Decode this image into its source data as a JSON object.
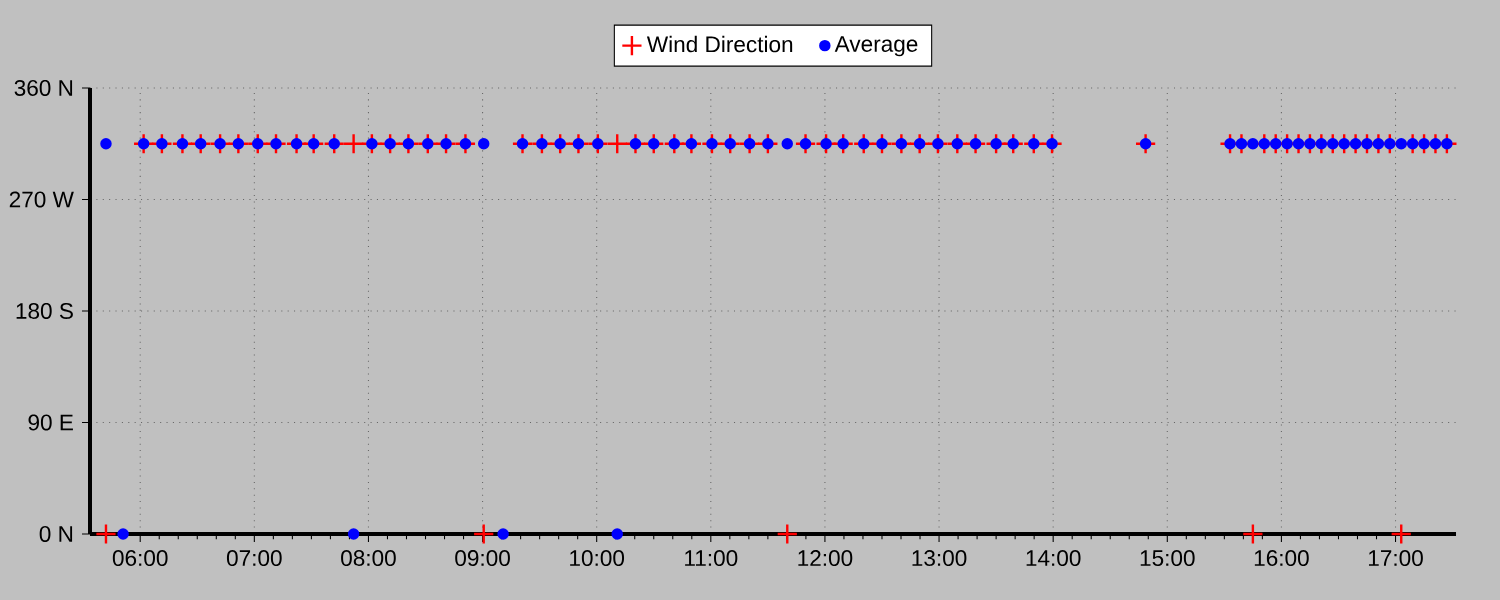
{
  "chart_data": {
    "type": "scatter",
    "xlim": [
      5.56,
      17.53
    ],
    "ylim": [
      0,
      360
    ],
    "xticks": [
      {
        "value": 6,
        "label": "06:00"
      },
      {
        "value": 7,
        "label": "07:00"
      },
      {
        "value": 8,
        "label": "08:00"
      },
      {
        "value": 9,
        "label": "09:00"
      },
      {
        "value": 10,
        "label": "10:00"
      },
      {
        "value": 11,
        "label": "11:00"
      },
      {
        "value": 12,
        "label": "12:00"
      },
      {
        "value": 13,
        "label": "13:00"
      },
      {
        "value": 14,
        "label": "14:00"
      },
      {
        "value": 15,
        "label": "15:00"
      },
      {
        "value": 16,
        "label": "16:00"
      },
      {
        "value": 17,
        "label": "17:00"
      }
    ],
    "yticks": [
      {
        "value": 0,
        "label": "0 N"
      },
      {
        "value": 90,
        "label": "90 E"
      },
      {
        "value": 180,
        "label": "180 S"
      },
      {
        "value": 270,
        "label": "270 W"
      },
      {
        "value": 360,
        "label": "360 N"
      }
    ],
    "grid": true,
    "legend": "top",
    "series": [
      {
        "name": "Wind Direction",
        "color": "#ff0000",
        "marker": "cross",
        "x": [
          5.7,
          6.03,
          6.19,
          6.37,
          6.53,
          6.7,
          6.86,
          7.03,
          7.19,
          7.37,
          7.52,
          7.7,
          7.87,
          8.03,
          8.19,
          8.35,
          8.52,
          8.68,
          8.85,
          9.01,
          9.35,
          9.52,
          9.68,
          9.84,
          10.01,
          10.18,
          10.34,
          10.5,
          10.68,
          10.83,
          11.01,
          11.17,
          11.34,
          11.5,
          11.67,
          11.83,
          12.01,
          12.16,
          12.34,
          12.5,
          12.67,
          12.83,
          12.99,
          13.16,
          13.32,
          13.5,
          13.65,
          13.83,
          13.99,
          14.81,
          15.55,
          15.65,
          15.75,
          15.85,
          15.95,
          16.05,
          16.15,
          16.25,
          16.35,
          16.45,
          16.55,
          16.65,
          16.75,
          16.85,
          16.95,
          17.05,
          17.15,
          17.25,
          17.35,
          17.45
        ],
        "values": [
          0,
          315,
          315,
          315,
          315,
          315,
          315,
          315,
          315,
          315,
          315,
          315,
          315,
          315,
          315,
          315,
          315,
          315,
          315,
          0,
          315,
          315,
          315,
          315,
          315,
          315,
          315,
          315,
          315,
          315,
          315,
          315,
          315,
          315,
          0,
          315,
          315,
          315,
          315,
          315,
          315,
          315,
          315,
          315,
          315,
          315,
          315,
          315,
          315,
          315,
          315,
          315,
          0,
          315,
          315,
          315,
          315,
          315,
          315,
          315,
          315,
          315,
          315,
          315,
          315,
          0,
          315,
          315,
          315,
          315
        ]
      },
      {
        "name": "Average",
        "color": "#0000ff",
        "marker": "circle",
        "x": [
          5.7,
          5.85,
          6.03,
          6.19,
          6.37,
          6.53,
          6.7,
          6.86,
          7.03,
          7.19,
          7.37,
          7.52,
          7.7,
          7.87,
          8.03,
          8.19,
          8.35,
          8.52,
          8.68,
          8.85,
          9.01,
          9.18,
          9.35,
          9.52,
          9.68,
          9.84,
          10.01,
          10.18,
          10.34,
          10.5,
          10.68,
          10.83,
          11.01,
          11.17,
          11.34,
          11.5,
          11.67,
          11.83,
          12.01,
          12.16,
          12.34,
          12.5,
          12.67,
          12.83,
          12.99,
          13.16,
          13.32,
          13.5,
          13.65,
          13.83,
          13.99,
          14.81,
          15.55,
          15.65,
          15.75,
          15.85,
          15.95,
          16.05,
          16.15,
          16.25,
          16.35,
          16.45,
          16.55,
          16.65,
          16.75,
          16.85,
          16.95,
          17.05,
          17.15,
          17.25,
          17.35,
          17.45
        ],
        "values": [
          315,
          0,
          315,
          315,
          315,
          315,
          315,
          315,
          315,
          315,
          315,
          315,
          315,
          0,
          315,
          315,
          315,
          315,
          315,
          315,
          315,
          0,
          315,
          315,
          315,
          315,
          315,
          0,
          315,
          315,
          315,
          315,
          315,
          315,
          315,
          315,
          315,
          315,
          315,
          315,
          315,
          315,
          315,
          315,
          315,
          315,
          315,
          315,
          315,
          315,
          315,
          315,
          315,
          315,
          315,
          315,
          315,
          315,
          315,
          315,
          315,
          315,
          315,
          315,
          315,
          315,
          315,
          315,
          315,
          315,
          315,
          315
        ]
      }
    ]
  }
}
